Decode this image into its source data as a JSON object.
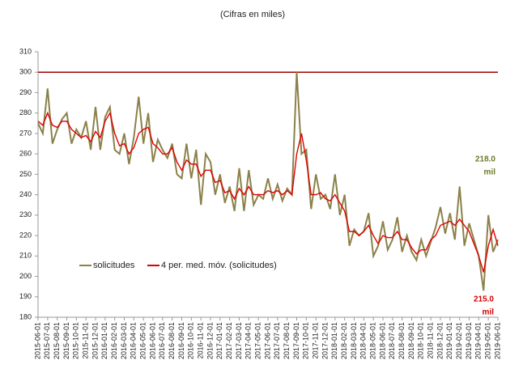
{
  "chart_data": {
    "type": "line",
    "title": "(Cifras en miles)",
    "categories": [
      "2015-06-01",
      null,
      "2015-07-01",
      null,
      "2015-08-01",
      null,
      "2015-09-01",
      null,
      "2015-10-01",
      null,
      "2015-11-01",
      null,
      "2015-12-01",
      null,
      "2016-01-01",
      null,
      "2016-02-01",
      null,
      "2016-03-01",
      null,
      "2016-04-01",
      null,
      "2016-05-01",
      null,
      "2016-06-01",
      null,
      "2016-07-01",
      null,
      "2016-08-01",
      null,
      "2016-09-01",
      null,
      "2016-10-01",
      null,
      "2016-11-01",
      null,
      "2016-12-01",
      null,
      "2017-01-01",
      null,
      "2017-02-01",
      null,
      "2017-03-01",
      null,
      "2017-04-01",
      null,
      "2017-05-01",
      null,
      "2017-06-01",
      null,
      "2017-07-01",
      null,
      "2017-08-01",
      null,
      "2017-09-01",
      null,
      "2017-10-01",
      null,
      "2017-11-01",
      null,
      "2017-12-01",
      null,
      "2018-01-01",
      null,
      "2018-02-01",
      null,
      "2018-03-01",
      null,
      "2018-04-01",
      null,
      "2018-05-01",
      null,
      "2018-06-01",
      null,
      "2018-07-01",
      null,
      "2018-08-01",
      null,
      "2018-09-01",
      null,
      "2018-10-01",
      null,
      "2018-11-01",
      null,
      "2018-12-01",
      null,
      "2019-01-01",
      null,
      "2019-02-01",
      null,
      "2019-03-01",
      null,
      "2019-04-01",
      null,
      "2019-05-01",
      null,
      "2019-06-01"
    ],
    "series": [
      {
        "name": "solicitudes",
        "color": "#8b8149",
        "values": [
          275,
          270,
          292,
          265,
          272,
          277,
          280,
          265,
          272,
          268,
          276,
          262,
          283,
          262,
          278,
          283,
          262,
          260,
          270,
          255,
          268,
          288,
          265,
          280,
          256,
          267,
          262,
          258,
          265,
          250,
          248,
          265,
          248,
          262,
          235,
          260,
          256,
          240,
          250,
          236,
          244,
          232,
          253,
          232,
          252,
          235,
          240,
          238,
          248,
          238,
          245,
          237,
          243,
          240,
          300,
          260,
          262,
          233,
          250,
          238,
          240,
          233,
          250,
          230,
          240,
          215,
          223,
          220,
          222,
          231,
          210,
          215,
          227,
          213,
          218,
          229,
          212,
          220,
          212,
          208,
          218,
          210,
          217,
          224,
          234,
          221,
          231,
          218,
          244,
          215,
          226,
          218,
          210,
          193,
          230,
          212,
          218
        ]
      },
      {
        "name": "4 per. med. móv. (solicitudes)",
        "color": "#e00000",
        "values": [
          276,
          274,
          280,
          274,
          273,
          276,
          276,
          272,
          270,
          268,
          269,
          266,
          271,
          268,
          276,
          280,
          270,
          264,
          265,
          260,
          263,
          270,
          272,
          273,
          265,
          263,
          260,
          260,
          263,
          256,
          252,
          257,
          255,
          255,
          249,
          252,
          252,
          246,
          247,
          241,
          242,
          238,
          243,
          240,
          244,
          240,
          240,
          240,
          242,
          241,
          242,
          240,
          242,
          240,
          260,
          270,
          257,
          240,
          240,
          241,
          238,
          237,
          240,
          236,
          232,
          222,
          222,
          220,
          222,
          225,
          220,
          216,
          220,
          219,
          219,
          222,
          218,
          218,
          214,
          211,
          213,
          213,
          218,
          220,
          225,
          226,
          227,
          225,
          228,
          225,
          222,
          216,
          210,
          202,
          215,
          223,
          215
        ]
      }
    ],
    "hline": {
      "value": 300,
      "color": "#a00000"
    },
    "annotations": [
      {
        "text": [
          "218.0",
          "mil"
        ],
        "color": "#6b7a2a"
      },
      {
        "text": [
          "215.0",
          "mil"
        ],
        "color": "#d00000"
      }
    ],
    "ylim": [
      180,
      310
    ],
    "yticks": [
      180,
      190,
      200,
      210,
      220,
      230,
      240,
      250,
      260,
      270,
      280,
      290,
      300,
      310
    ]
  }
}
